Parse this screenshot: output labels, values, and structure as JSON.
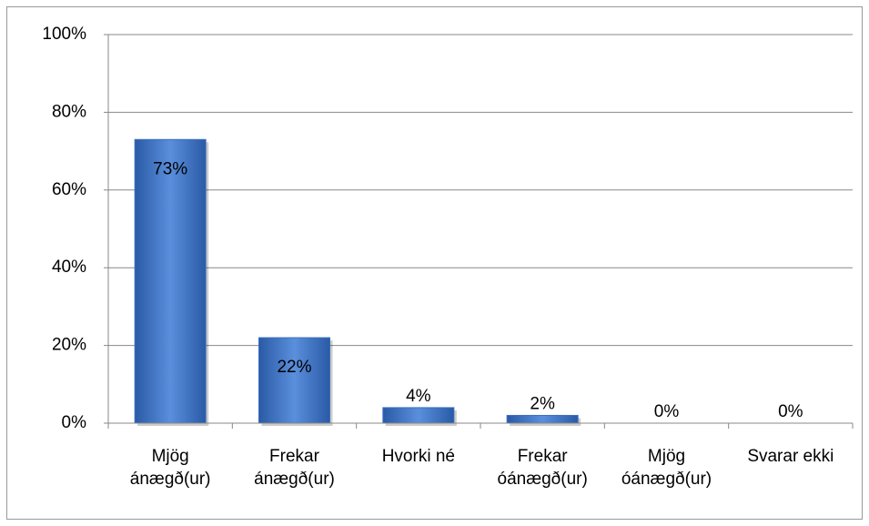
{
  "chart_data": {
    "type": "bar",
    "categories": [
      "Mjög ánægð(ur)",
      "Frekar ánægð(ur)",
      "Hvorki né",
      "Frekar óánægð(ur)",
      "Mjög óánægð(ur)",
      "Svarar ekki"
    ],
    "values": [
      73,
      22,
      4,
      2,
      0,
      0
    ],
    "value_labels": [
      "73%",
      "22%",
      "4%",
      "2%",
      "0%",
      "0%"
    ],
    "color": "#3a6fbf",
    "ylim": [
      0,
      100
    ],
    "yticks": [
      {
        "value": 0,
        "label": "0%"
      },
      {
        "value": 20,
        "label": "20%"
      },
      {
        "value": 40,
        "label": "40%"
      },
      {
        "value": 60,
        "label": "60%"
      },
      {
        "value": 80,
        "label": "80%"
      },
      {
        "value": 100,
        "label": "100%"
      }
    ],
    "grid": true
  }
}
